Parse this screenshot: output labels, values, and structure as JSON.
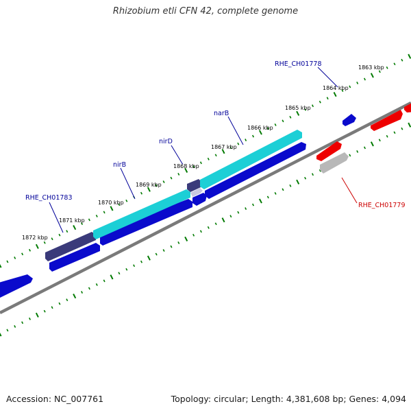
{
  "title": "Rhizobium etli CFN 42, complete genome",
  "footer": {
    "accession": "Accession: NC_007761",
    "summary": "Topology: circular; Length: 4,381,608 bp; Genes: 4,094"
  },
  "colors": {
    "forward_gene": "#0a0acc",
    "reverse_gene": "#ee0000",
    "operon_highlight": "#1ccfd6",
    "dark_segment": "#3a3a7a",
    "pseudo_gene": "#b8b8b8",
    "backbone": "#808080",
    "tick": "#007a00",
    "label_forward": "#000099",
    "label_reverse": "#cc0000"
  },
  "scale_labels": [
    "1863 kbp",
    "1864 kbp",
    "1865 kbp",
    "1866 kbp",
    "1867 kbp",
    "1868 kbp",
    "1869 kbp",
    "1870 kbp",
    "1871 kbp",
    "1872 kbp"
  ],
  "gene_labels": [
    {
      "text": "RHE_CH01778",
      "strand": "forward"
    },
    {
      "text": "narB",
      "strand": "forward"
    },
    {
      "text": "nirD",
      "strand": "forward"
    },
    {
      "text": "nirB",
      "strand": "forward"
    },
    {
      "text": "RHE_CH01783",
      "strand": "forward"
    },
    {
      "text": "RHE_CH01779",
      "strand": "reverse"
    }
  ]
}
